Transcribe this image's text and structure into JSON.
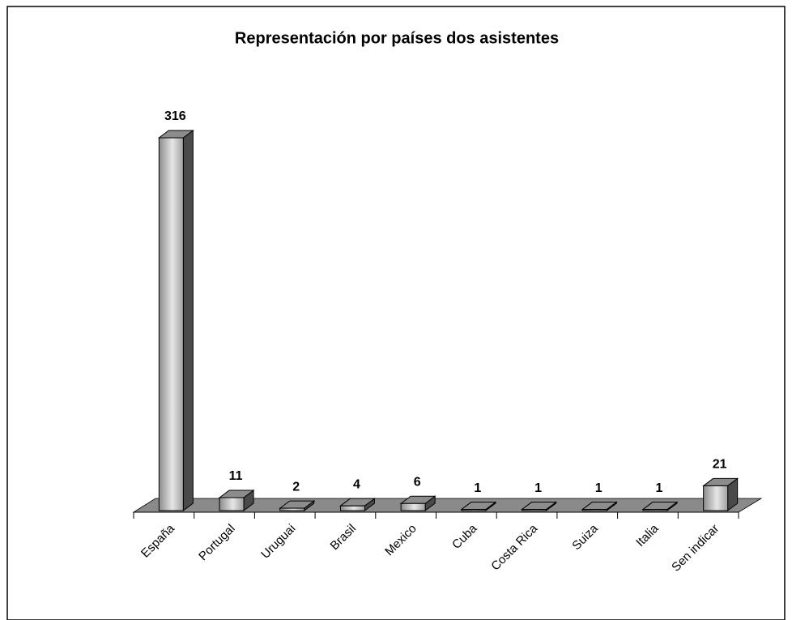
{
  "chart_data": {
    "type": "bar3d",
    "title": "Representación por países dos asistentes",
    "categories": [
      "España",
      "Portugal",
      "Uruguai",
      "Brasil",
      "Mexico",
      "Cuba",
      "Costa Rica",
      "Suiza",
      "Italia",
      "Sen indicar"
    ],
    "values": [
      316,
      11,
      2,
      4,
      6,
      1,
      1,
      1,
      1,
      21
    ],
    "color": "#b4b4b4"
  }
}
